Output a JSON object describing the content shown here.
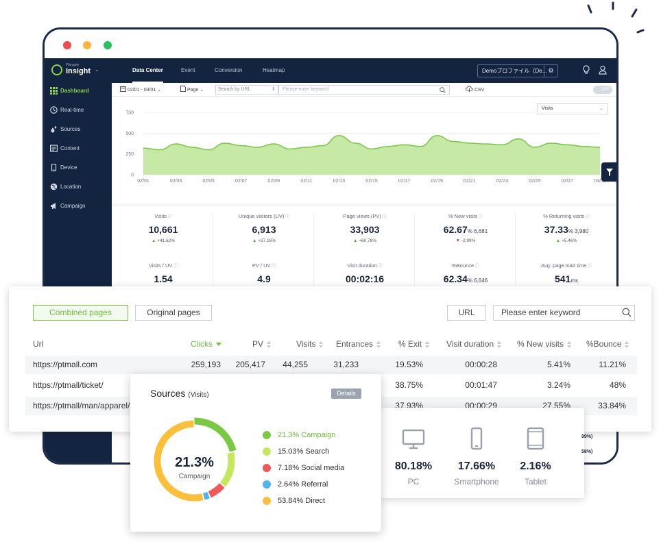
{
  "colors": {
    "nav_bg": "#132440",
    "accent_green": "#7ac943",
    "area_fill": "#c6e9a6",
    "area_line": "#7cc94a",
    "src_campaign": "#7ac943",
    "src_search": "#c3e85b",
    "src_social": "#f0585a",
    "src_referral": "#4fb3f0",
    "src_direct": "#fbbf3a"
  },
  "app": {
    "logo_small": "Plangine",
    "logo_text": "Insight",
    "tabs": [
      {
        "label": "Data Center",
        "active": true
      },
      {
        "label": "Event",
        "active": false
      },
      {
        "label": "Conversion",
        "active": false
      },
      {
        "label": "Heatmap",
        "active": false
      }
    ],
    "profile": "Demoプロファイル（De…",
    "icons": [
      "gear-icon",
      "lightbulb-icon",
      "user-icon"
    ]
  },
  "sidebar": {
    "items": [
      {
        "label": "Dashboard",
        "icon": "grid-icon",
        "active": true
      },
      {
        "label": "Real-time",
        "icon": "clock-icon",
        "active": false
      },
      {
        "label": "Sources",
        "icon": "drops-icon",
        "active": false
      },
      {
        "label": "Content",
        "icon": "document-icon",
        "active": false
      },
      {
        "label": "Device",
        "icon": "phone-icon",
        "active": false
      },
      {
        "label": "Location",
        "icon": "globe-icon",
        "active": false
      },
      {
        "label": "Campaign",
        "icon": "megaphone-icon",
        "active": false
      }
    ]
  },
  "filters": {
    "date_range": "02/01 - 03/01",
    "page_select": "Page",
    "url_select": "Search by URL",
    "keyword_placeholder": "Please enter keyword",
    "csv_label": "CSV",
    "toggle_label": "OFF"
  },
  "chart_data": {
    "type": "area",
    "metric_select": "Visits",
    "x": [
      "02/01",
      "02/02",
      "02/03",
      "02/04",
      "02/05",
      "02/06",
      "02/07",
      "02/08",
      "02/09",
      "02/10",
      "02/11",
      "02/12",
      "02/13",
      "02/14",
      "02/15",
      "02/16",
      "02/17",
      "02/18",
      "02/19",
      "02/20",
      "02/21",
      "02/22",
      "02/23",
      "02/24",
      "02/25",
      "02/26",
      "02/27",
      "02/28",
      "03/01"
    ],
    "x_tick_labels": [
      "02/01",
      "02/03",
      "02/05",
      "02/07",
      "02/09",
      "02/11",
      "02/13",
      "02/15",
      "02/17",
      "02/19",
      "02/21",
      "02/23",
      "02/25",
      "02/27",
      "03/01"
    ],
    "values": [
      320,
      300,
      370,
      330,
      300,
      380,
      350,
      330,
      370,
      310,
      330,
      350,
      470,
      380,
      310,
      340,
      360,
      340,
      470,
      400,
      380,
      370,
      360,
      430,
      330,
      380,
      360,
      340,
      330
    ],
    "ylim": [
      0,
      750
    ],
    "yticks": [
      "0",
      "250",
      "500",
      "750"
    ],
    "grid": true
  },
  "metrics": [
    {
      "label": "Visits",
      "value": "10,661",
      "sub": "",
      "change": "+41.62%",
      "dir": "up"
    },
    {
      "label": "Unique visitors (UV)",
      "value": "6,913",
      "sub": "",
      "change": "+37.16%",
      "dir": "up"
    },
    {
      "label": "Page views (PV)",
      "value": "33,903",
      "sub": "",
      "change": "+60.78%",
      "dir": "up"
    },
    {
      "label": "% New visits",
      "value": "62.67",
      "sub": "% 6,681",
      "change": "-2.99%",
      "dir": "down"
    },
    {
      "label": "% Returning visits",
      "value": "37.33",
      "sub": "% 3,980",
      "change": "+5.46%",
      "dir": "up"
    },
    {
      "label": "Visits / UV",
      "value": "1.54",
      "sub": "",
      "change": "",
      "dir": ""
    },
    {
      "label": "PV / UV",
      "value": "4.9",
      "sub": "",
      "change": "",
      "dir": ""
    },
    {
      "label": "Visit duration",
      "value": "00:02:16",
      "sub": "",
      "change": "",
      "dir": ""
    },
    {
      "label": "%Bounce",
      "value": "62.34",
      "sub": "% 6,646",
      "change": "",
      "dir": ""
    },
    {
      "label": "Avg. page load time",
      "value": "541",
      "sub": "ms",
      "change": "",
      "dir": ""
    }
  ],
  "table": {
    "btn_combined": "Combined pages",
    "btn_original": "Original pages",
    "btn_url": "URL",
    "keyword_placeholder": "Please enter keyword",
    "headers": [
      "Url",
      "Clicks",
      "PV",
      "Visits",
      "Entrances",
      "% Exit",
      "Visit duration",
      "% New visits",
      "%Bounce"
    ],
    "rows": [
      [
        "https://ptmall.com",
        "259,193",
        "205,417",
        "44,255",
        "31,233",
        "19.53%",
        "00:00:28",
        "5.41%",
        "11.21%"
      ],
      [
        "https://ptmall/ticket/",
        "",
        "",
        "",
        "",
        "38.75%",
        "00:01:47",
        "3.24%",
        "48%"
      ],
      [
        "https://ptmall/man/apparel/h",
        "",
        "",
        "",
        "",
        "37.93%",
        "00:00:29",
        "27.55%",
        "33.84%"
      ]
    ]
  },
  "sources": {
    "title": "Sources",
    "subtitle": "(Visits)",
    "details": "Details",
    "center_value": "21.3%",
    "center_label": "Campaign",
    "items": [
      {
        "label": "21.3% Campaign",
        "value": 21.3,
        "highlight": true
      },
      {
        "label": "15.03% Search",
        "value": 15.03,
        "highlight": false
      },
      {
        "label": "7.18% Social media",
        "value": 7.18,
        "highlight": false
      },
      {
        "label": "2.64% Referral",
        "value": 2.64,
        "highlight": false
      },
      {
        "label": "53.84% Direct",
        "value": 53.84,
        "highlight": false
      }
    ]
  },
  "devices": {
    "items": [
      {
        "value": "80.18%",
        "name": "PC",
        "icon": "monitor-icon"
      },
      {
        "value": "17.66%",
        "name": "Smartphone",
        "icon": "smartphone-icon"
      },
      {
        "value": "2.16%",
        "name": "Tablet",
        "icon": "tablet-icon"
      }
    ],
    "peek": [
      "99%)",
      "58%)"
    ]
  }
}
